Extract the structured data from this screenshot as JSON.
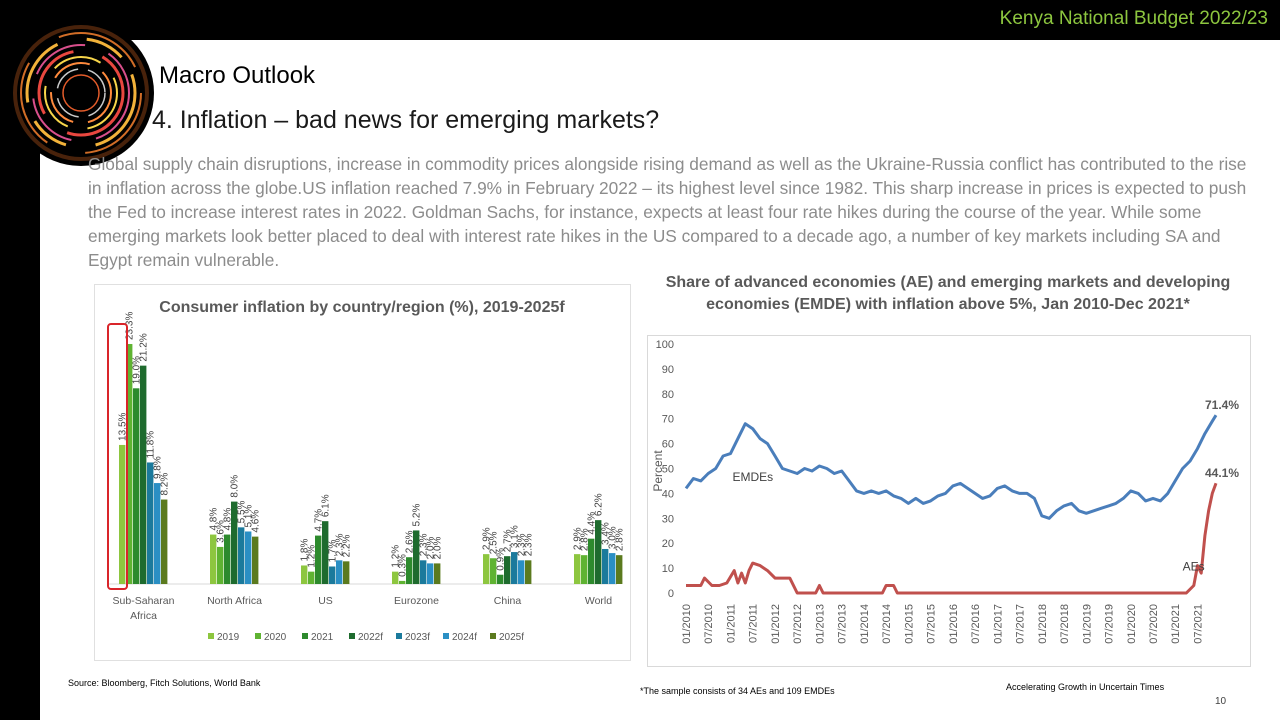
{
  "header": {
    "budget_title": "Kenya National Budget 2022/23"
  },
  "section_title": "Macro Outlook",
  "slide_title": "4. Inflation – bad news for emerging markets?",
  "body_text": "Global supply chain disruptions, increase in commodity prices alongside rising demand as well as the Ukraine-Russia conflict has contributed to the rise in inflation across the globe.US inflation reached 7.9% in February 2022 – its highest level since 1982. This sharp increase in prices is expected to push the Fed to increase interest rates in 2022. Goldman Sachs, for instance, expects at least four rate hikes during the course of the year. While some emerging markets look better placed to deal with interest rate hikes in the US compared to a decade ago, a number of key markets including SA and Egypt remain vulnerable.",
  "footer": {
    "source": "Source: Bloomberg, Fitch Solutions, World Bank",
    "footnote": "*The sample consists of 34 AEs and 109 EMDEs",
    "tagline": "Accelerating Growth in Uncertain Times",
    "page_number": "10"
  },
  "colors": {
    "accent_green": "#8dc63f",
    "highlight_box": "#d9252a",
    "emde_line": "#4a7ebb",
    "ae_line": "#c0504d"
  },
  "chart_data": [
    {
      "type": "bar",
      "title": "Consumer inflation by country/region (%), 2019-2025f",
      "categories": [
        "Sub-Saharan Africa",
        "North Africa",
        "US",
        "Eurozone",
        "China",
        "World"
      ],
      "series": [
        {
          "name": "2019",
          "color": "#8dc63f",
          "values": [
            13.5,
            4.8,
            1.8,
            1.2,
            2.9,
            2.9
          ]
        },
        {
          "name": "2020",
          "color": "#5fb332",
          "values": [
            23.3,
            3.6,
            1.2,
            0.3,
            2.5,
            2.8
          ]
        },
        {
          "name": "2021",
          "color": "#2d8a2d",
          "values": [
            19.0,
            4.8,
            4.7,
            2.6,
            0.9,
            4.4
          ]
        },
        {
          "name": "2022f",
          "color": "#1e6b2e",
          "values": [
            21.2,
            8.0,
            6.1,
            5.2,
            2.7,
            6.2
          ]
        },
        {
          "name": "2023f",
          "color": "#1b7a9c",
          "values": [
            11.8,
            5.5,
            1.7,
            2.3,
            3.1,
            3.4
          ]
        },
        {
          "name": "2024f",
          "color": "#2a8fc4",
          "values": [
            9.8,
            5.1,
            2.3,
            2.0,
            2.3,
            3.0
          ]
        },
        {
          "name": "2025f",
          "color": "#5b7a1e",
          "values": [
            8.2,
            4.6,
            2.2,
            2.0,
            2.3,
            2.8
          ]
        }
      ],
      "data_label_suffix": "%",
      "legend_position": "bottom",
      "highlight_category": "Sub-Saharan Africa"
    },
    {
      "type": "line",
      "title": "Share of advanced economies (AE) and emerging markets and developing economies (EMDE) with inflation above 5%, Jan 2010-Dec 2021*",
      "ylabel": "Percent",
      "ylim": [
        0,
        100
      ],
      "yticks": [
        "0",
        "10",
        "20",
        "30",
        "40",
        "50",
        "60",
        "70",
        "80",
        "90",
        "100"
      ],
      "xticks": [
        "01/2010",
        "07/2010",
        "01/2011",
        "07/2011",
        "01/2012",
        "07/2012",
        "01/2013",
        "07/2013",
        "01/2014",
        "07/2014",
        "01/2015",
        "07/2015",
        "01/2016",
        "07/2016",
        "01/2017",
        "07/2017",
        "01/2018",
        "07/2018",
        "01/2019",
        "07/2019",
        "01/2020",
        "07/2020",
        "01/2021",
        "07/2021"
      ],
      "xlim": [
        "01/2010",
        "12/2021"
      ],
      "series": [
        {
          "name": "EMDEs",
          "color": "#4a7ebb",
          "end_label": "71.4%",
          "points": [
            [
              "01/2010",
              42
            ],
            [
              "03/2010",
              46
            ],
            [
              "05/2010",
              45
            ],
            [
              "07/2010",
              48
            ],
            [
              "09/2010",
              50
            ],
            [
              "11/2010",
              55
            ],
            [
              "01/2011",
              56
            ],
            [
              "03/2011",
              62
            ],
            [
              "05/2011",
              68
            ],
            [
              "07/2011",
              66
            ],
            [
              "09/2011",
              62
            ],
            [
              "11/2011",
              60
            ],
            [
              "01/2012",
              55
            ],
            [
              "03/2012",
              50
            ],
            [
              "05/2012",
              49
            ],
            [
              "07/2012",
              48
            ],
            [
              "09/2012",
              50
            ],
            [
              "11/2012",
              49
            ],
            [
              "01/2013",
              51
            ],
            [
              "03/2013",
              50
            ],
            [
              "05/2013",
              48
            ],
            [
              "07/2013",
              49
            ],
            [
              "09/2013",
              45
            ],
            [
              "11/2013",
              41
            ],
            [
              "01/2014",
              40
            ],
            [
              "03/2014",
              41
            ],
            [
              "05/2014",
              40
            ],
            [
              "07/2014",
              41
            ],
            [
              "09/2014",
              39
            ],
            [
              "11/2014",
              38
            ],
            [
              "01/2015",
              36
            ],
            [
              "03/2015",
              38
            ],
            [
              "05/2015",
              36
            ],
            [
              "07/2015",
              37
            ],
            [
              "09/2015",
              39
            ],
            [
              "11/2015",
              40
            ],
            [
              "01/2016",
              43
            ],
            [
              "03/2016",
              44
            ],
            [
              "05/2016",
              42
            ],
            [
              "07/2016",
              40
            ],
            [
              "09/2016",
              38
            ],
            [
              "11/2016",
              39
            ],
            [
              "01/2017",
              42
            ],
            [
              "03/2017",
              43
            ],
            [
              "05/2017",
              41
            ],
            [
              "07/2017",
              40
            ],
            [
              "09/2017",
              40
            ],
            [
              "11/2017",
              38
            ],
            [
              "01/2018",
              31
            ],
            [
              "03/2018",
              30
            ],
            [
              "05/2018",
              33
            ],
            [
              "07/2018",
              35
            ],
            [
              "09/2018",
              36
            ],
            [
              "11/2018",
              33
            ],
            [
              "01/2019",
              32
            ],
            [
              "03/2019",
              33
            ],
            [
              "05/2019",
              34
            ],
            [
              "07/2019",
              35
            ],
            [
              "09/2019",
              36
            ],
            [
              "11/2019",
              38
            ],
            [
              "01/2020",
              41
            ],
            [
              "03/2020",
              40
            ],
            [
              "05/2020",
              37
            ],
            [
              "07/2020",
              38
            ],
            [
              "09/2020",
              37
            ],
            [
              "11/2020",
              40
            ],
            [
              "01/2021",
              45
            ],
            [
              "03/2021",
              50
            ],
            [
              "05/2021",
              53
            ],
            [
              "07/2021",
              58
            ],
            [
              "09/2021",
              64
            ],
            [
              "11/2021",
              69
            ],
            [
              "12/2021",
              71.4
            ]
          ]
        },
        {
          "name": "AEs",
          "color": "#c0504d",
          "end_label": "44.1%",
          "points": [
            [
              "01/2010",
              3
            ],
            [
              "05/2010",
              3
            ],
            [
              "06/2010",
              6
            ],
            [
              "08/2010",
              3
            ],
            [
              "10/2010",
              3
            ],
            [
              "12/2010",
              4
            ],
            [
              "02/2011",
              9
            ],
            [
              "03/2011",
              4
            ],
            [
              "04/2011",
              8
            ],
            [
              "05/2011",
              4
            ],
            [
              "06/2011",
              9
            ],
            [
              "07/2011",
              12
            ],
            [
              "09/2011",
              11
            ],
            [
              "11/2011",
              9
            ],
            [
              "01/2012",
              6
            ],
            [
              "03/2012",
              6
            ],
            [
              "05/2012",
              6
            ],
            [
              "07/2012",
              0
            ],
            [
              "12/2012",
              0
            ],
            [
              "01/2013",
              3
            ],
            [
              "02/2013",
              0
            ],
            [
              "06/2014",
              0
            ],
            [
              "07/2014",
              3
            ],
            [
              "09/2014",
              3
            ],
            [
              "10/2014",
              0
            ],
            [
              "04/2021",
              0
            ],
            [
              "06/2021",
              3
            ],
            [
              "07/2021",
              11
            ],
            [
              "08/2021",
              8
            ],
            [
              "09/2021",
              23
            ],
            [
              "10/2021",
              33
            ],
            [
              "11/2021",
              40
            ],
            [
              "12/2021",
              44.1
            ]
          ]
        }
      ],
      "grid": false,
      "legend_position": "inline labels"
    }
  ]
}
